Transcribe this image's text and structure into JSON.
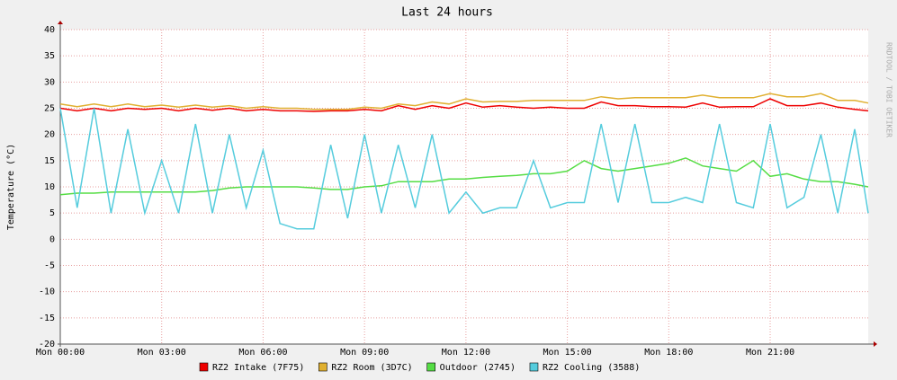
{
  "chart_data": {
    "type": "line",
    "title": "Last 24 hours",
    "y_label": "Temperature (°C)",
    "watermark": "RRDTOOL / TOBI OETIKER",
    "x": [
      0,
      0.5,
      1,
      1.5,
      2,
      2.5,
      3,
      3.5,
      4,
      4.5,
      5,
      5.5,
      6,
      6.5,
      7,
      7.5,
      8,
      8.5,
      9,
      9.5,
      10,
      10.5,
      11,
      11.5,
      12,
      12.5,
      13,
      13.5,
      14,
      14.5,
      15,
      15.5,
      16,
      16.5,
      17,
      17.5,
      18,
      18.5,
      19,
      19.5,
      20,
      20.5,
      21,
      21.5,
      22,
      22.5,
      23,
      23.5,
      23.9
    ],
    "xlim": [
      0,
      23.9
    ],
    "xticks": [
      {
        "value": 0,
        "label": "Mon 00:00"
      },
      {
        "value": 3,
        "label": "Mon 03:00"
      },
      {
        "value": 6,
        "label": "Mon 06:00"
      },
      {
        "value": 9,
        "label": "Mon 09:00"
      },
      {
        "value": 12,
        "label": "Mon 12:00"
      },
      {
        "value": 15,
        "label": "Mon 15:00"
      },
      {
        "value": 18,
        "label": "Mon 18:00"
      },
      {
        "value": 21,
        "label": "Mon 21:00"
      }
    ],
    "ylim": [
      -20,
      40
    ],
    "yticks": [
      -20,
      -15,
      -10,
      -5,
      0,
      5,
      10,
      15,
      20,
      25,
      30,
      35,
      40
    ],
    "grid": true,
    "series": [
      {
        "name": "RZ2 Intake (7F75)",
        "color": "#ee0000",
        "values": [
          25,
          24.5,
          25,
          24.5,
          25,
          24.8,
          25,
          24.5,
          25,
          24.6,
          25,
          24.5,
          24.8,
          24.5,
          24.5,
          24.4,
          24.5,
          24.5,
          24.8,
          24.5,
          25.5,
          24.8,
          25.5,
          25,
          26,
          25.2,
          25.5,
          25.2,
          25,
          25.2,
          25,
          25,
          26.2,
          25.5,
          25.5,
          25.3,
          25.3,
          25.2,
          26,
          25.2,
          25.3,
          25.3,
          26.8,
          25.5,
          25.5,
          26,
          25.2,
          24.8,
          24.5
        ]
      },
      {
        "name": "RZ2 Room (3D7C)",
        "color": "#e0b030",
        "values": [
          25.8,
          25.3,
          25.8,
          25.3,
          25.8,
          25.3,
          25.6,
          25.2,
          25.6,
          25.2,
          25.5,
          25,
          25.3,
          25,
          25,
          24.8,
          24.8,
          24.8,
          25.2,
          25,
          25.8,
          25.5,
          26.2,
          25.8,
          26.8,
          26.2,
          26.3,
          26.3,
          26.5,
          26.5,
          26.5,
          26.5,
          27.2,
          26.8,
          27,
          27,
          27,
          27,
          27.5,
          27,
          27,
          27,
          27.8,
          27.2,
          27.2,
          27.8,
          26.5,
          26.5,
          26
        ]
      },
      {
        "name": "Outdoor (2745)",
        "color": "#55dd44",
        "values": [
          8.5,
          8.8,
          8.8,
          9,
          9,
          9,
          9,
          9,
          9,
          9.3,
          9.8,
          10,
          10,
          10,
          10,
          9.8,
          9.5,
          9.5,
          10,
          10.2,
          11,
          11,
          11,
          11.5,
          11.5,
          11.8,
          12,
          12.2,
          12.5,
          12.5,
          13,
          15,
          13.5,
          13,
          13.5,
          14,
          14.5,
          15.5,
          14,
          13.5,
          13,
          15,
          12,
          12.5,
          11.5,
          11,
          11,
          10.5,
          10
        ]
      },
      {
        "name": "RZ2 Cooling (3588)",
        "color": "#55ccdd",
        "values": [
          25,
          6,
          25,
          5,
          21,
          5,
          15,
          5,
          22,
          5,
          20,
          6,
          17,
          3,
          2,
          2,
          18,
          4,
          20,
          5,
          18,
          6,
          20,
          5,
          9,
          5,
          6,
          6,
          15,
          6,
          7,
          7,
          22,
          7,
          22,
          7,
          7,
          8,
          7,
          22,
          7,
          6,
          22,
          6,
          8,
          20,
          5,
          21,
          5
        ]
      }
    ]
  }
}
